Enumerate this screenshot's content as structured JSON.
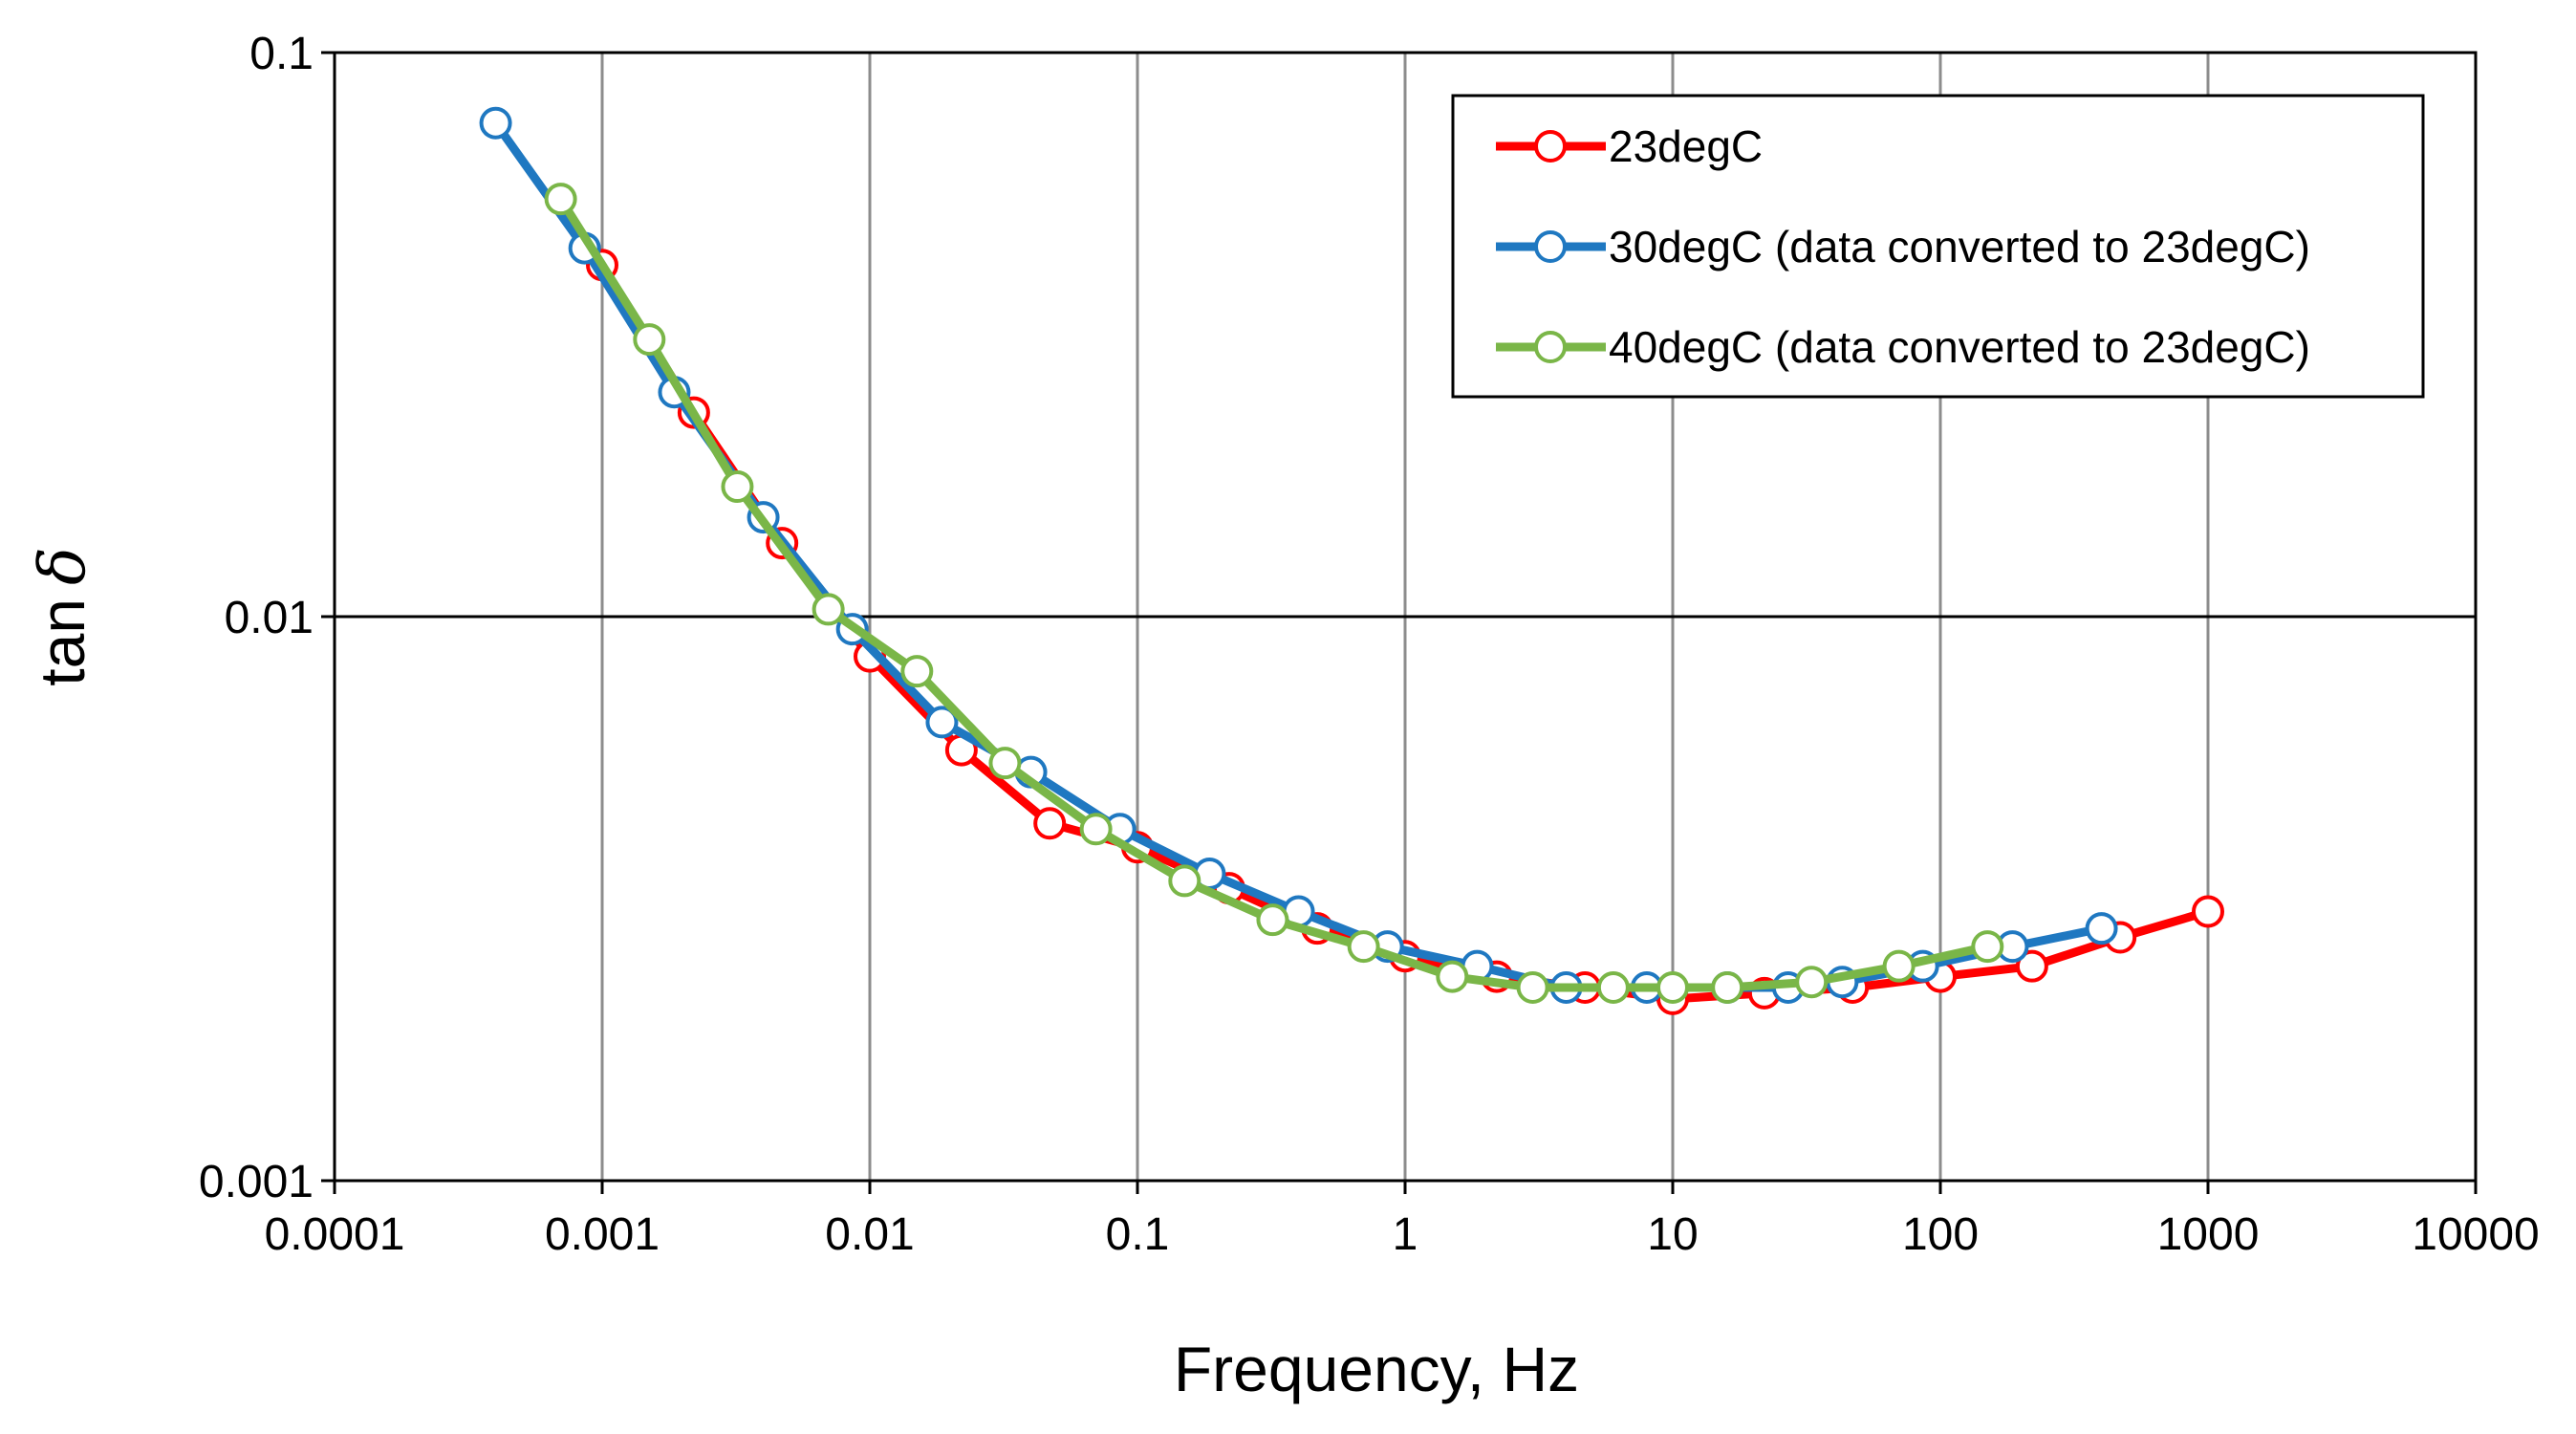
{
  "chart_data": {
    "type": "line",
    "title": "",
    "xlabel": "Frequency, Hz",
    "ylabel_prefix": "tan",
    "ylabel_symbol": "δ",
    "xscale": "log",
    "yscale": "log",
    "xlim": [
      0.0001,
      10000
    ],
    "ylim": [
      0.001,
      0.1
    ],
    "x_ticks": [
      0.0001,
      0.001,
      0.01,
      0.1,
      1,
      10,
      100,
      1000,
      10000
    ],
    "x_tick_labels": [
      "0.0001",
      "0.001",
      "0.01",
      "0.1",
      "1",
      "10",
      "100",
      "1000",
      "10000"
    ],
    "y_ticks": [
      0.001,
      0.01,
      0.1
    ],
    "y_tick_labels": [
      "0.001",
      "0.01",
      "0.1"
    ],
    "grid": true,
    "legend_position": "top-right",
    "series": [
      {
        "name": "23degC",
        "color": "#ff0000",
        "x": [
          0.001,
          0.0022,
          0.0047,
          0.01,
          0.022,
          0.047,
          0.1,
          0.22,
          0.47,
          1,
          2.2,
          4.7,
          10,
          22,
          47,
          100,
          220,
          470,
          1000
        ],
        "y": [
          0.042,
          0.023,
          0.0135,
          0.0085,
          0.0058,
          0.0043,
          0.0039,
          0.0033,
          0.0028,
          0.0025,
          0.0023,
          0.0022,
          0.0021,
          0.00215,
          0.0022,
          0.0023,
          0.0024,
          0.0027,
          0.003
        ]
      },
      {
        "name": "30degC (data converted to 23degC)",
        "color": "#1f78c1",
        "x": [
          0.0004,
          0.00086,
          0.00186,
          0.004,
          0.0086,
          0.0186,
          0.04,
          0.086,
          0.186,
          0.4,
          0.86,
          1.86,
          4,
          8,
          16,
          27,
          43,
          86,
          186,
          400
        ],
        "y": [
          0.075,
          0.045,
          0.025,
          0.015,
          0.0095,
          0.0065,
          0.0053,
          0.0042,
          0.0035,
          0.003,
          0.0026,
          0.0024,
          0.0022,
          0.0022,
          0.0022,
          0.0022,
          0.00225,
          0.0024,
          0.0026,
          0.0028
        ]
      },
      {
        "name": "40degC (data converted to 23degC)",
        "color": "#7ab648",
        "x": [
          0.0007,
          0.0015,
          0.0032,
          0.007,
          0.015,
          0.032,
          0.07,
          0.15,
          0.32,
          0.7,
          1.5,
          3,
          6,
          10,
          16,
          33,
          70,
          150
        ],
        "y": [
          0.055,
          0.031,
          0.017,
          0.0103,
          0.008,
          0.0055,
          0.0042,
          0.0034,
          0.0029,
          0.0026,
          0.0023,
          0.0022,
          0.0022,
          0.0022,
          0.0022,
          0.00225,
          0.0024,
          0.0026
        ]
      }
    ]
  }
}
